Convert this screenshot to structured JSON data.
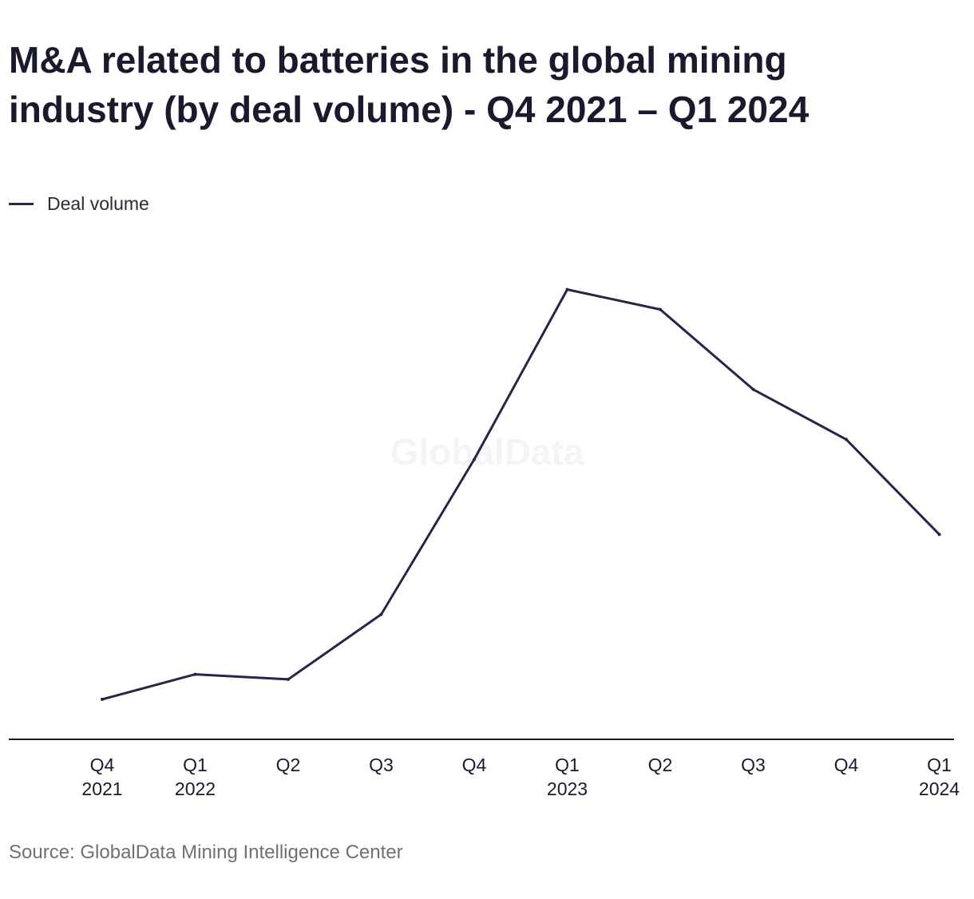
{
  "title_lines": [
    "M&A related to batteries in the global mining",
    "industry (by deal volume) - Q4 2021 – Q1 2024"
  ],
  "legend": {
    "label": "Deal volume",
    "color": "#2e2249"
  },
  "source": "Source: GlobalData Mining Intelligence Center",
  "watermark": "GlobalData",
  "chart_data": {
    "type": "line",
    "title": "M&A related to batteries in the global mining industry (by deal volume) - Q4 2021 – Q1 2024",
    "xlabel": "",
    "ylabel": "",
    "categories": [
      [
        "Q4",
        "2021"
      ],
      [
        "Q1",
        "2022"
      ],
      [
        "Q2",
        ""
      ],
      [
        "Q3",
        ""
      ],
      [
        "Q4",
        ""
      ],
      [
        "Q1",
        "2023"
      ],
      [
        "Q2",
        ""
      ],
      [
        "Q3",
        ""
      ],
      [
        "Q4",
        ""
      ],
      [
        "Q1",
        "2024"
      ]
    ],
    "series": [
      {
        "name": "Deal volume",
        "color": "#2e2249",
        "values": [
          8,
          13,
          12,
          25,
          56,
          90,
          86,
          70,
          60,
          41
        ]
      }
    ],
    "ylim": [
      0,
      100
    ],
    "grid": false,
    "legend_position": "top-left"
  }
}
